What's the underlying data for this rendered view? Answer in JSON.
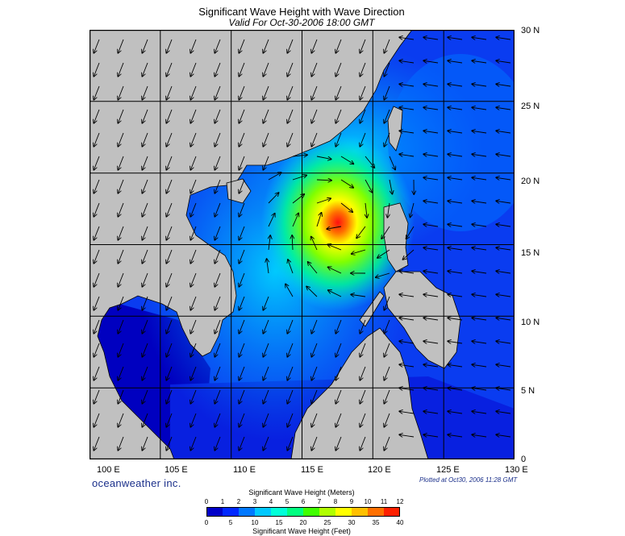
{
  "title": "Significant Wave Height with Wave Direction",
  "subtitle": "Valid For Oct-30-2006 18:00 GMT",
  "latitude_labels": [
    "30 N",
    "25 N",
    "20 N",
    "15 N",
    "10 N",
    "5 N",
    "0"
  ],
  "longitude_labels": [
    "100 E",
    "105 E",
    "110 E",
    "115 E",
    "120 E",
    "125 E",
    "130 E"
  ],
  "brand": "oceanweather inc.",
  "plotted_note": "Plotted at Oct30, 2006 11:28 GMT",
  "colorbar": {
    "title_meters": "Significant Wave Height (Meters)",
    "meters_ticks": [
      "0",
      "1",
      "2",
      "3",
      "4",
      "5",
      "6",
      "7",
      "8",
      "9",
      "10",
      "11",
      "12"
    ],
    "feet_ticks": [
      "0",
      "5",
      "10",
      "15",
      "20",
      "25",
      "30",
      "35",
      "40"
    ],
    "title_feet": "Significant Wave Height (Feet)",
    "colors": [
      "#0000c8",
      "#0028ff",
      "#0078ff",
      "#00c8ff",
      "#00ffd8",
      "#00ff80",
      "#40ff00",
      "#b0ff00",
      "#ffff00",
      "#ffc000",
      "#ff7000",
      "#ff2000"
    ]
  },
  "map": {
    "land_color": "#c0c0c0",
    "grid_color": "#000000",
    "lon_range": [
      100,
      130
    ],
    "lat_range": [
      0,
      30
    ],
    "storm_center": {
      "lon": 116.7,
      "lat": 17.3,
      "max_height_m": 11
    }
  }
}
